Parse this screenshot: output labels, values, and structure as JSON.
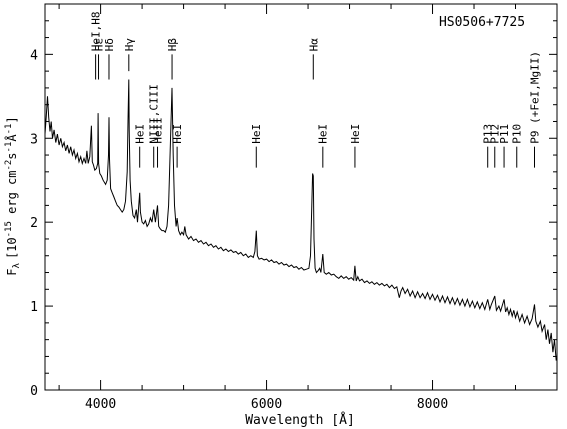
{
  "chart_data": {
    "type": "line",
    "title": "HS0506+7725",
    "xlabel": "Wavelength [Å]",
    "ylabel": "F_λ [10^-15 erg cm^-2 s^-1 Å^-1]",
    "ylabel_parts": {
      "symbol": "F",
      "sub": "λ",
      "bracket_open": "[10",
      "exp1": "-15",
      "erg": " erg cm",
      "exp2": "-2",
      "s": "s",
      "exp3": "-1",
      "ang": "Å",
      "exp4": "-1",
      "bracket_close": "]"
    },
    "xlim": [
      3330,
      9500
    ],
    "ylim": [
      0,
      4.6
    ],
    "xticks": [
      4000,
      6000,
      8000
    ],
    "yticks": [
      0,
      1,
      2,
      3,
      4
    ],
    "grid": false,
    "series": [
      {
        "color": "#000000",
        "points": [
          [
            3330,
            3.05
          ],
          [
            3345,
            3.25
          ],
          [
            3360,
            3.5
          ],
          [
            3375,
            3.25
          ],
          [
            3390,
            3.08
          ],
          [
            3405,
            3.2
          ],
          [
            3420,
            3.0
          ],
          [
            3440,
            3.1
          ],
          [
            3460,
            2.95
          ],
          [
            3480,
            3.05
          ],
          [
            3500,
            2.92
          ],
          [
            3520,
            3.0
          ],
          [
            3540,
            2.9
          ],
          [
            3560,
            2.95
          ],
          [
            3580,
            2.85
          ],
          [
            3600,
            2.92
          ],
          [
            3620,
            2.82
          ],
          [
            3640,
            2.9
          ],
          [
            3660,
            2.8
          ],
          [
            3680,
            2.86
          ],
          [
            3700,
            2.76
          ],
          [
            3720,
            2.82
          ],
          [
            3740,
            2.72
          ],
          [
            3760,
            2.78
          ],
          [
            3780,
            2.7
          ],
          [
            3800,
            2.76
          ],
          [
            3820,
            2.7
          ],
          [
            3835,
            2.85
          ],
          [
            3850,
            2.7
          ],
          [
            3870,
            2.78
          ],
          [
            3889,
            3.15
          ],
          [
            3900,
            2.72
          ],
          [
            3915,
            2.68
          ],
          [
            3930,
            2.62
          ],
          [
            3950,
            2.64
          ],
          [
            3965,
            2.7
          ],
          [
            3970,
            3.3
          ],
          [
            3976,
            2.7
          ],
          [
            3990,
            2.58
          ],
          [
            4010,
            2.55
          ],
          [
            4030,
            2.5
          ],
          [
            4060,
            2.45
          ],
          [
            4080,
            2.5
          ],
          [
            4095,
            2.8
          ],
          [
            4101,
            3.25
          ],
          [
            4107,
            2.75
          ],
          [
            4120,
            2.4
          ],
          [
            4140,
            2.35
          ],
          [
            4160,
            2.3
          ],
          [
            4180,
            2.25
          ],
          [
            4200,
            2.2
          ],
          [
            4220,
            2.18
          ],
          [
            4240,
            2.15
          ],
          [
            4260,
            2.12
          ],
          [
            4280,
            2.15
          ],
          [
            4300,
            2.25
          ],
          [
            4320,
            2.6
          ],
          [
            4330,
            3.2
          ],
          [
            4340,
            3.7
          ],
          [
            4345,
            3.1
          ],
          [
            4355,
            2.5
          ],
          [
            4370,
            2.25
          ],
          [
            4390,
            2.08
          ],
          [
            4410,
            2.05
          ],
          [
            4430,
            2.15
          ],
          [
            4445,
            2.0
          ],
          [
            4471,
            2.35
          ],
          [
            4480,
            2.12
          ],
          [
            4500,
            2.0
          ],
          [
            4520,
            1.98
          ],
          [
            4540,
            2.02
          ],
          [
            4560,
            1.95
          ],
          [
            4580,
            1.98
          ],
          [
            4600,
            2.05
          ],
          [
            4620,
            2.0
          ],
          [
            4640,
            2.15
          ],
          [
            4660,
            2.0
          ],
          [
            4686,
            2.2
          ],
          [
            4700,
            1.95
          ],
          [
            4720,
            1.92
          ],
          [
            4740,
            1.9
          ],
          [
            4760,
            1.9
          ],
          [
            4780,
            1.88
          ],
          [
            4800,
            1.95
          ],
          [
            4820,
            2.2
          ],
          [
            4840,
            2.9
          ],
          [
            4861,
            3.6
          ],
          [
            4875,
            2.8
          ],
          [
            4890,
            2.2
          ],
          [
            4910,
            1.95
          ],
          [
            4922,
            2.05
          ],
          [
            4940,
            1.9
          ],
          [
            4960,
            1.85
          ],
          [
            4980,
            1.88
          ],
          [
            5000,
            1.85
          ],
          [
            5015,
            1.95
          ],
          [
            5030,
            1.85
          ],
          [
            5060,
            1.8
          ],
          [
            5090,
            1.83
          ],
          [
            5120,
            1.78
          ],
          [
            5150,
            1.8
          ],
          [
            5180,
            1.76
          ],
          [
            5210,
            1.78
          ],
          [
            5240,
            1.74
          ],
          [
            5270,
            1.76
          ],
          [
            5300,
            1.72
          ],
          [
            5330,
            1.74
          ],
          [
            5360,
            1.7
          ],
          [
            5390,
            1.72
          ],
          [
            5420,
            1.68
          ],
          [
            5450,
            1.7
          ],
          [
            5480,
            1.66
          ],
          [
            5510,
            1.68
          ],
          [
            5540,
            1.65
          ],
          [
            5570,
            1.67
          ],
          [
            5600,
            1.64
          ],
          [
            5630,
            1.65
          ],
          [
            5660,
            1.62
          ],
          [
            5690,
            1.64
          ],
          [
            5720,
            1.6
          ],
          [
            5750,
            1.62
          ],
          [
            5780,
            1.58
          ],
          [
            5810,
            1.6
          ],
          [
            5840,
            1.58
          ],
          [
            5860,
            1.65
          ],
          [
            5876,
            1.9
          ],
          [
            5890,
            1.6
          ],
          [
            5910,
            1.56
          ],
          [
            5940,
            1.57
          ],
          [
            5970,
            1.55
          ],
          [
            6000,
            1.56
          ],
          [
            6030,
            1.53
          ],
          [
            6060,
            1.55
          ],
          [
            6090,
            1.52
          ],
          [
            6120,
            1.53
          ],
          [
            6150,
            1.5
          ],
          [
            6180,
            1.52
          ],
          [
            6210,
            1.49
          ],
          [
            6240,
            1.5
          ],
          [
            6270,
            1.47
          ],
          [
            6300,
            1.49
          ],
          [
            6330,
            1.46
          ],
          [
            6360,
            1.47
          ],
          [
            6390,
            1.44
          ],
          [
            6420,
            1.46
          ],
          [
            6450,
            1.43
          ],
          [
            6480,
            1.44
          ],
          [
            6510,
            1.45
          ],
          [
            6530,
            1.6
          ],
          [
            6545,
            2.2
          ],
          [
            6555,
            2.58
          ],
          [
            6563,
            2.55
          ],
          [
            6572,
            1.8
          ],
          [
            6585,
            1.45
          ],
          [
            6600,
            1.4
          ],
          [
            6620,
            1.42
          ],
          [
            6640,
            1.45
          ],
          [
            6655,
            1.4
          ],
          [
            6678,
            1.62
          ],
          [
            6695,
            1.4
          ],
          [
            6720,
            1.38
          ],
          [
            6750,
            1.4
          ],
          [
            6780,
            1.37
          ],
          [
            6810,
            1.38
          ],
          [
            6840,
            1.35
          ],
          [
            6870,
            1.33
          ],
          [
            6900,
            1.36
          ],
          [
            6930,
            1.33
          ],
          [
            6960,
            1.35
          ],
          [
            6990,
            1.32
          ],
          [
            7020,
            1.34
          ],
          [
            7050,
            1.31
          ],
          [
            7065,
            1.48
          ],
          [
            7080,
            1.3
          ],
          [
            7100,
            1.35
          ],
          [
            7120,
            1.3
          ],
          [
            7150,
            1.32
          ],
          [
            7180,
            1.28
          ],
          [
            7210,
            1.3
          ],
          [
            7240,
            1.27
          ],
          [
            7270,
            1.29
          ],
          [
            7300,
            1.26
          ],
          [
            7330,
            1.28
          ],
          [
            7360,
            1.25
          ],
          [
            7390,
            1.27
          ],
          [
            7420,
            1.24
          ],
          [
            7450,
            1.26
          ],
          [
            7480,
            1.22
          ],
          [
            7510,
            1.25
          ],
          [
            7540,
            1.21
          ],
          [
            7570,
            1.23
          ],
          [
            7600,
            1.1
          ],
          [
            7620,
            1.18
          ],
          [
            7640,
            1.22
          ],
          [
            7670,
            1.15
          ],
          [
            7700,
            1.2
          ],
          [
            7730,
            1.12
          ],
          [
            7760,
            1.18
          ],
          [
            7790,
            1.1
          ],
          [
            7820,
            1.17
          ],
          [
            7850,
            1.1
          ],
          [
            7880,
            1.15
          ],
          [
            7910,
            1.09
          ],
          [
            7940,
            1.16
          ],
          [
            7970,
            1.08
          ],
          [
            8000,
            1.14
          ],
          [
            8030,
            1.07
          ],
          [
            8060,
            1.13
          ],
          [
            8090,
            1.05
          ],
          [
            8120,
            1.12
          ],
          [
            8150,
            1.04
          ],
          [
            8180,
            1.11
          ],
          [
            8210,
            1.03
          ],
          [
            8240,
            1.1
          ],
          [
            8270,
            1.02
          ],
          [
            8300,
            1.09
          ],
          [
            8330,
            1.01
          ],
          [
            8360,
            1.08
          ],
          [
            8390,
            1.0
          ],
          [
            8420,
            1.08
          ],
          [
            8450,
            0.99
          ],
          [
            8480,
            1.06
          ],
          [
            8510,
            0.98
          ],
          [
            8540,
            1.05
          ],
          [
            8570,
            0.97
          ],
          [
            8600,
            1.04
          ],
          [
            8630,
            0.96
          ],
          [
            8665,
            1.08
          ],
          [
            8690,
            0.96
          ],
          [
            8710,
            1.02
          ],
          [
            8750,
            1.12
          ],
          [
            8770,
            0.95
          ],
          [
            8800,
            1.0
          ],
          [
            8820,
            0.94
          ],
          [
            8862,
            1.08
          ],
          [
            8880,
            0.93
          ],
          [
            8900,
            0.98
          ],
          [
            8920,
            0.9
          ],
          [
            8940,
            0.96
          ],
          [
            8960,
            0.88
          ],
          [
            8980,
            0.95
          ],
          [
            9000,
            0.86
          ],
          [
            9020,
            0.93
          ],
          [
            9050,
            0.82
          ],
          [
            9080,
            0.9
          ],
          [
            9110,
            0.8
          ],
          [
            9140,
            0.88
          ],
          [
            9170,
            0.78
          ],
          [
            9200,
            0.85
          ],
          [
            9229,
            1.02
          ],
          [
            9245,
            0.82
          ],
          [
            9270,
            0.75
          ],
          [
            9300,
            0.82
          ],
          [
            9320,
            0.7
          ],
          [
            9350,
            0.78
          ],
          [
            9370,
            0.6
          ],
          [
            9390,
            0.72
          ],
          [
            9410,
            0.55
          ],
          [
            9430,
            0.68
          ],
          [
            9450,
            0.45
          ],
          [
            9470,
            0.6
          ],
          [
            9490,
            0.35
          ]
        ]
      }
    ],
    "annotations": [
      {
        "label": "HeI,H8",
        "x": 3940,
        "tick_top": 4.0,
        "tick_bottom": 3.7,
        "text_y": 4.0
      },
      {
        "label": "Hε",
        "x": 3975,
        "tick_top": 4.0,
        "tick_bottom": 3.7,
        "text_y": 4.0
      },
      {
        "label": "Hδ",
        "x": 4101,
        "tick_top": 4.0,
        "tick_bottom": 3.7,
        "text_y": 4.0
      },
      {
        "label": "Hγ",
        "x": 4340,
        "tick_top": 4.0,
        "tick_bottom": 3.8,
        "text_y": 4.0
      },
      {
        "label": "Hβ",
        "x": 4861,
        "tick_top": 4.0,
        "tick_bottom": 3.7,
        "text_y": 4.0
      },
      {
        "label": "Hα",
        "x": 6563,
        "tick_top": 4.0,
        "tick_bottom": 3.7,
        "text_y": 4.0
      },
      {
        "label": "HeI",
        "x": 4471,
        "tick_top": 2.9,
        "tick_bottom": 2.65,
        "text_y": 2.9
      },
      {
        "label": "NIII,CIII",
        "x": 4640,
        "tick_top": 2.9,
        "tick_bottom": 2.65,
        "text_y": 2.9
      },
      {
        "label": "HeII",
        "x": 4686,
        "tick_top": 2.9,
        "tick_bottom": 2.65,
        "text_y": 2.9
      },
      {
        "label": "HeI",
        "x": 4922,
        "tick_top": 2.9,
        "tick_bottom": 2.65,
        "text_y": 2.9
      },
      {
        "label": "HeI",
        "x": 5876,
        "tick_top": 2.9,
        "tick_bottom": 2.65,
        "text_y": 2.9
      },
      {
        "label": "HeI",
        "x": 6678,
        "tick_top": 2.9,
        "tick_bottom": 2.65,
        "text_y": 2.9
      },
      {
        "label": "HeI",
        "x": 7065,
        "tick_top": 2.9,
        "tick_bottom": 2.65,
        "text_y": 2.9
      },
      {
        "label": "P13",
        "x": 8665,
        "tick_top": 2.9,
        "tick_bottom": 2.65,
        "text_y": 2.9
      },
      {
        "label": "P12",
        "x": 8750,
        "tick_top": 2.9,
        "tick_bottom": 2.65,
        "text_y": 2.9
      },
      {
        "label": "P11",
        "x": 8862,
        "tick_top": 2.9,
        "tick_bottom": 2.65,
        "text_y": 2.9
      },
      {
        "label": "P10",
        "x": 9015,
        "tick_top": 2.9,
        "tick_bottom": 2.65,
        "text_y": 2.9
      },
      {
        "label": "P9 (+FeI,MgII)",
        "x": 9229,
        "tick_top": 2.9,
        "tick_bottom": 2.65,
        "text_y": 2.9
      }
    ]
  }
}
